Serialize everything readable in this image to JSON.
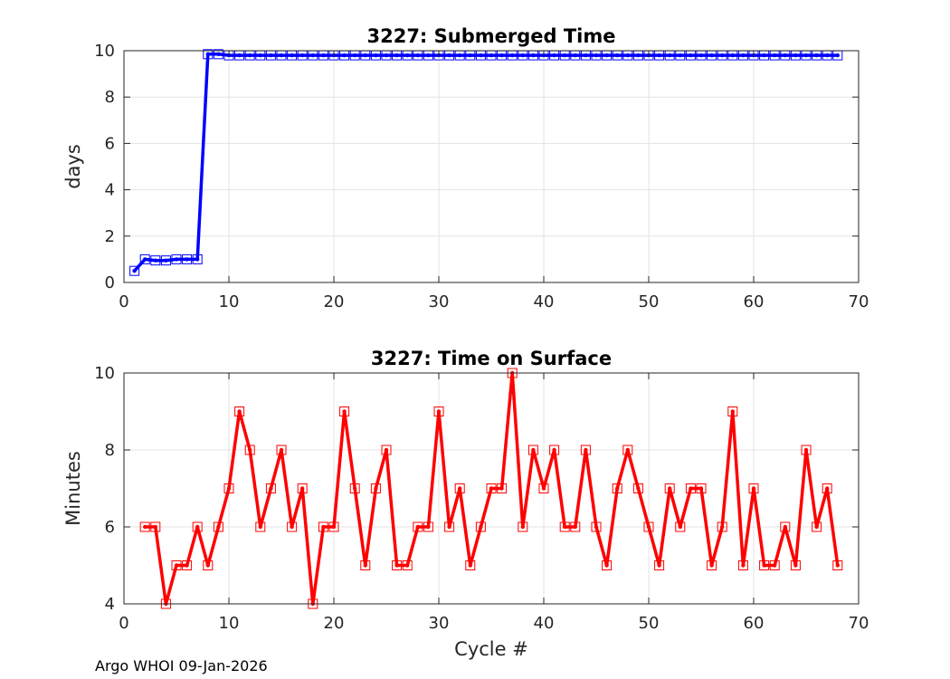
{
  "chart_data": [
    {
      "type": "line",
      "title": "3227: Submerged Time",
      "xlabel": "",
      "ylabel": "days",
      "xlim": [
        0,
        70
      ],
      "ylim": [
        0,
        10
      ],
      "xticks": [
        0,
        10,
        20,
        30,
        40,
        50,
        60,
        70
      ],
      "yticks": [
        0,
        2,
        4,
        6,
        8,
        10
      ],
      "grid": true,
      "color": "#0000ff",
      "marker": "square",
      "x": [
        1,
        2,
        3,
        4,
        5,
        6,
        7,
        8,
        9,
        10,
        11,
        12,
        13,
        14,
        15,
        16,
        17,
        18,
        19,
        20,
        21,
        22,
        23,
        24,
        25,
        26,
        27,
        28,
        29,
        30,
        31,
        32,
        33,
        34,
        35,
        36,
        37,
        38,
        39,
        40,
        41,
        42,
        43,
        44,
        45,
        46,
        47,
        48,
        49,
        50,
        51,
        52,
        53,
        54,
        55,
        56,
        57,
        58,
        59,
        60,
        61,
        62,
        63,
        64,
        65,
        66,
        67,
        68
      ],
      "y": [
        0.5,
        1.0,
        0.95,
        0.95,
        1.0,
        1.0,
        1.0,
        9.85,
        9.85,
        9.8,
        9.8,
        9.8,
        9.8,
        9.8,
        9.8,
        9.8,
        9.8,
        9.8,
        9.8,
        9.8,
        9.8,
        9.8,
        9.8,
        9.8,
        9.8,
        9.8,
        9.8,
        9.8,
        9.8,
        9.8,
        9.8,
        9.8,
        9.8,
        9.8,
        9.8,
        9.8,
        9.8,
        9.8,
        9.8,
        9.8,
        9.8,
        9.8,
        9.8,
        9.8,
        9.8,
        9.8,
        9.8,
        9.8,
        9.8,
        9.8,
        9.8,
        9.8,
        9.8,
        9.8,
        9.8,
        9.8,
        9.8,
        9.8,
        9.8,
        9.8,
        9.8,
        9.8,
        9.8,
        9.8,
        9.8,
        9.8,
        9.8,
        9.8
      ]
    },
    {
      "type": "line",
      "title": "3227: Time on Surface",
      "xlabel": "Cycle #",
      "ylabel": "Minutes",
      "xlim": [
        0,
        70
      ],
      "ylim": [
        4,
        10
      ],
      "xticks": [
        0,
        10,
        20,
        30,
        40,
        50,
        60,
        70
      ],
      "yticks": [
        4,
        6,
        8,
        10
      ],
      "grid": true,
      "color": "#ff0000",
      "marker": "square",
      "x": [
        2,
        3,
        4,
        5,
        6,
        7,
        8,
        9,
        10,
        11,
        12,
        13,
        14,
        15,
        16,
        17,
        18,
        19,
        20,
        21,
        22,
        23,
        24,
        25,
        26,
        27,
        28,
        29,
        30,
        31,
        32,
        33,
        34,
        35,
        36,
        37,
        38,
        39,
        40,
        41,
        42,
        43,
        44,
        45,
        46,
        47,
        48,
        49,
        50,
        51,
        52,
        53,
        54,
        55,
        56,
        57,
        58,
        59,
        60,
        61,
        62,
        63,
        64,
        65,
        66,
        67,
        68
      ],
      "y": [
        6,
        6,
        4,
        5,
        5,
        6,
        5,
        6,
        7,
        9,
        8,
        6,
        7,
        8,
        6,
        7,
        4,
        6,
        6,
        9,
        7,
        5,
        7,
        8,
        5,
        5,
        6,
        6,
        9,
        6,
        7,
        5,
        6,
        7,
        7,
        10,
        6,
        8,
        7,
        8,
        6,
        6,
        8,
        6,
        5,
        7,
        8,
        7,
        6,
        5,
        7,
        6,
        7,
        7,
        5,
        6,
        9,
        5,
        7,
        5,
        5,
        6,
        5,
        8,
        6,
        7,
        5
      ]
    }
  ],
  "footer": "Argo WHOI 09-Jan-2026"
}
